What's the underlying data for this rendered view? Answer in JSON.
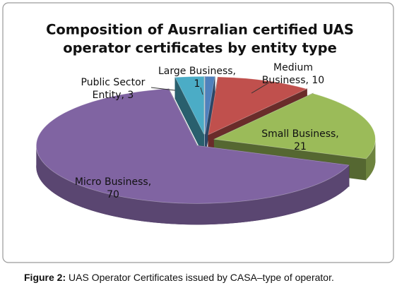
{
  "chart_data": {
    "type": "pie3d",
    "title": [
      "Composition of Ausrralian certified UAS",
      "operator certificates by entity type"
    ],
    "labels": [
      [
        "Large Business,",
        "1"
      ],
      [
        "Medium",
        "Business, 10"
      ],
      [
        "Small Business,",
        "21"
      ],
      [
        "Micro Business,",
        "70"
      ],
      [
        "Public Sector",
        "Entity, 3"
      ]
    ],
    "values": [
      1,
      10,
      21,
      70,
      3
    ],
    "colors": [
      "#4f81bd",
      "#c0504d",
      "#9bbb59",
      "#8064a2",
      "#4bacc6"
    ],
    "caption": {
      "label": "Figure 2:",
      "text": "UAS Operator Certificates issued by CASA–type of operator."
    }
  }
}
